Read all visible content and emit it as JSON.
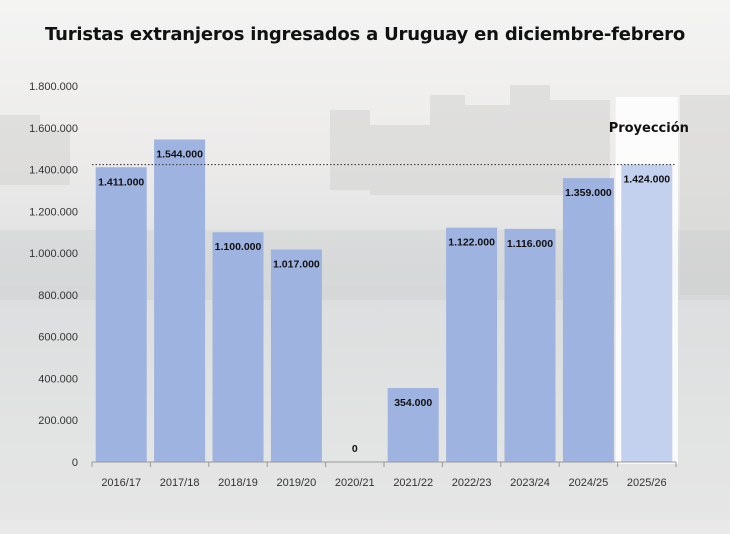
{
  "chart_data": {
    "type": "bar",
    "title": "Turistas extranjeros ingresados a Uruguay en diciembre-febrero",
    "categories": [
      "2016/17",
      "2017/18",
      "2018/19",
      "2019/20",
      "2020/21",
      "2021/22",
      "2022/23",
      "2023/24",
      "2024/25",
      "2025/26"
    ],
    "values": [
      1411000,
      1544000,
      1100000,
      1017000,
      0,
      354000,
      1122000,
      1116000,
      1359000,
      1424000
    ],
    "data_labels": [
      "1.411.000",
      "1.544.000",
      "1.100.000",
      "1.017.000",
      "0",
      "354.000",
      "1.122.000",
      "1.116.000",
      "1.359.000",
      "1.424.000"
    ],
    "ylim": [
      0,
      1800000
    ],
    "y_ticks": [
      0,
      200000,
      400000,
      600000,
      800000,
      1000000,
      1200000,
      1400000,
      1600000,
      1800000
    ],
    "y_tick_labels": [
      "0",
      "200.000",
      "400.000",
      "600.000",
      "800.000",
      "1.000.000",
      "1.200.000",
      "1.400.000",
      "1.600.000",
      "1.800.000"
    ],
    "projection_label": "Proyección",
    "projection_category": "2025/26",
    "reference_line_value": 1424000,
    "grid": false,
    "colors": {
      "bar": "#9fb3e0",
      "projection_bar": "#c3d0ee",
      "projection_panel": "#ffffff",
      "text": "#111111",
      "axis": "#999999"
    }
  }
}
